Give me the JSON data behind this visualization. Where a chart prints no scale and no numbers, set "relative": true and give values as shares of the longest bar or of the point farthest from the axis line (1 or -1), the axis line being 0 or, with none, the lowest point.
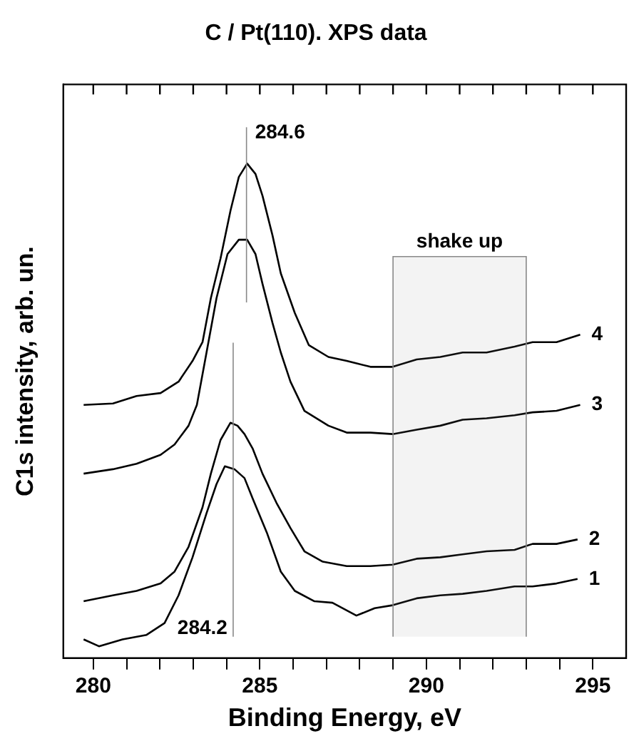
{
  "chart_data": {
    "type": "line",
    "title": "C / Pt(110). XPS data",
    "xlabel": "Binding Energy, eV",
    "ylabel": "C1s intensity, arb. un.",
    "relative": true,
    "xlim": [
      279.1,
      296
    ],
    "xticks": [
      280,
      {
        "value": 281,
        "label": null
      },
      {
        "value": 282,
        "label": null
      },
      {
        "value": 283,
        "label": null
      },
      {
        "value": 284,
        "label": null
      },
      285,
      {
        "value": 286,
        "label": null
      },
      {
        "value": 287,
        "label": null
      },
      {
        "value": 288,
        "label": null
      },
      {
        "value": 289,
        "label": null
      },
      290,
      {
        "value": 291,
        "label": null
      },
      {
        "value": 292,
        "label": null
      },
      {
        "value": 293,
        "label": null
      },
      {
        "value": 294,
        "label": null
      },
      295
    ],
    "grid": false,
    "legend": false,
    "marker": "none",
    "line_style": "solid",
    "ref_lines": [
      {
        "axis": "x",
        "value": 284.6,
        "label": "284.6",
        "color": "#888888"
      },
      {
        "axis": "x",
        "value": 284.2,
        "label": "284.2",
        "color": "#888888"
      }
    ],
    "bands": [
      {
        "axis": "x",
        "from": 289,
        "to": 293,
        "label": "shake up",
        "color": "#888888"
      }
    ],
    "series": [
      {
        "name": "1",
        "color": "#000000",
        "x": [
          279.71,
          280.17,
          280.88,
          281.6,
          282.14,
          282.56,
          282.98,
          283.4,
          283.7,
          283.95,
          284.24,
          284.54,
          284.79,
          285.21,
          285.63,
          286.05,
          286.64,
          287.18,
          287.9,
          288.45,
          288.99,
          289.71,
          290.42,
          291.09,
          291.81,
          292.65,
          293.19,
          293.91,
          294.54
        ],
        "values": [
          0.038,
          0.024,
          0.038,
          0.047,
          0.071,
          0.127,
          0.204,
          0.293,
          0.352,
          0.388,
          0.382,
          0.364,
          0.322,
          0.254,
          0.175,
          0.136,
          0.115,
          0.112,
          0.086,
          0.101,
          0.107,
          0.121,
          0.127,
          0.13,
          0.136,
          0.145,
          0.145,
          0.151,
          0.16
        ]
      },
      {
        "name": "2",
        "color": "#000000",
        "x": [
          279.71,
          280.59,
          281.3,
          282.02,
          282.44,
          282.86,
          283.28,
          283.53,
          283.82,
          284.12,
          284.33,
          284.54,
          284.79,
          285.08,
          285.5,
          285.92,
          286.34,
          286.89,
          287.61,
          288.32,
          288.99,
          289.71,
          290.42,
          291.09,
          291.81,
          292.65,
          293.19,
          293.91,
          294.54
        ],
        "values": [
          0.115,
          0.127,
          0.136,
          0.151,
          0.175,
          0.225,
          0.305,
          0.373,
          0.441,
          0.476,
          0.47,
          0.453,
          0.423,
          0.373,
          0.314,
          0.263,
          0.216,
          0.195,
          0.186,
          0.186,
          0.189,
          0.201,
          0.204,
          0.21,
          0.216,
          0.219,
          0.231,
          0.231,
          0.24
        ]
      },
      {
        "name": "3",
        "color": "#000000",
        "x": [
          279.71,
          280.59,
          281.3,
          282.02,
          282.44,
          282.86,
          283.11,
          283.4,
          283.7,
          284.03,
          284.37,
          284.62,
          284.87,
          285.08,
          285.38,
          285.63,
          285.92,
          286.34,
          287.06,
          287.61,
          288.32,
          288.99,
          289.71,
          290.42,
          291.09,
          291.81,
          292.65,
          293.19,
          293.91,
          294.62
        ],
        "values": [
          0.373,
          0.382,
          0.393,
          0.411,
          0.432,
          0.47,
          0.512,
          0.618,
          0.728,
          0.817,
          0.846,
          0.846,
          0.817,
          0.757,
          0.678,
          0.618,
          0.559,
          0.5,
          0.47,
          0.456,
          0.456,
          0.453,
          0.462,
          0.47,
          0.482,
          0.485,
          0.491,
          0.497,
          0.5,
          0.512
        ]
      },
      {
        "name": "4",
        "color": "#000000",
        "x": [
          279.71,
          280.59,
          281.3,
          282.02,
          282.56,
          282.98,
          283.28,
          283.53,
          283.82,
          284.12,
          284.37,
          284.62,
          284.87,
          285.08,
          285.38,
          285.63,
          286.05,
          286.47,
          287.06,
          287.61,
          288.32,
          288.99,
          289.71,
          290.42,
          291.09,
          291.81,
          292.65,
          293.19,
          293.91,
          294.62
        ],
        "values": [
          0.512,
          0.515,
          0.53,
          0.536,
          0.559,
          0.601,
          0.639,
          0.728,
          0.808,
          0.905,
          0.973,
          1,
          0.979,
          0.935,
          0.855,
          0.778,
          0.698,
          0.633,
          0.609,
          0.601,
          0.589,
          0.589,
          0.604,
          0.609,
          0.618,
          0.618,
          0.63,
          0.639,
          0.639,
          0.654
        ]
      }
    ]
  }
}
